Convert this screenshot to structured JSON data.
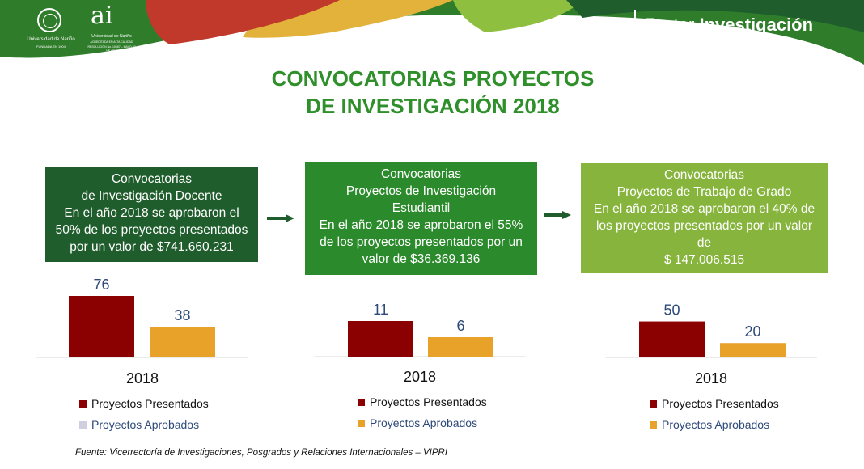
{
  "header": {
    "university_name": "Universidad de Nariño",
    "university_founded": "FUNDADA EN 1904",
    "ai_mark": "ai",
    "ai_line1": "Universidad de Nariño",
    "ai_line2": "ACREDITADA EN ALTA CALIDAD",
    "ai_line3": "RESOLUCIÓN No. 10567 – MAYO 23 DE 2017",
    "brand_light": "Factor ",
    "brand_bold": "Investigación"
  },
  "title": {
    "line1": "CONVOCATORIAS PROYECTOS",
    "line2": "DE INVESTIGACIÓN 2018"
  },
  "cards": [
    {
      "lines": [
        "Convocatorias",
        "de Investigación Docente",
        "En el año 2018 se aprobaron el",
        "50% de los proyectos presentados",
        "por un valor de  $741.660.231"
      ]
    },
    {
      "lines": [
        "Convocatorias",
        "Proyectos de Investigación",
        "Estudiantil",
        "En el año 2018 se aprobaron el 55%",
        "de los proyectos presentados por un",
        "valor de  $36.369.136"
      ]
    },
    {
      "lines": [
        "Convocatorias",
        "Proyectos de Trabajo de Grado",
        "En el año 2018 se aprobaron el 40% de",
        "los proyectos presentados por un valor",
        "de",
        "$ 147.006.515"
      ]
    }
  ],
  "colors": {
    "presentados": "#8b0000",
    "aprobados": "#e8a22a",
    "legend_aprobados_swatch_chart1": "#cfcfe0",
    "card1": "#1f5d2c",
    "card2": "#2b8a2b",
    "card3": "#86b43c",
    "title": "#2f8f2a"
  },
  "chart_data": [
    {
      "type": "bar",
      "categories": [
        "2018"
      ],
      "series": [
        {
          "name": "Proyectos Presentados",
          "values": [
            76
          ]
        },
        {
          "name": "Proyectos Aprobados",
          "values": [
            38
          ]
        }
      ],
      "ylim": [
        0,
        80
      ],
      "legend": "bottom"
    },
    {
      "type": "bar",
      "categories": [
        "2018"
      ],
      "series": [
        {
          "name": "Proyectos Presentados",
          "values": [
            11
          ]
        },
        {
          "name": "Proyectos Aprobados",
          "values": [
            6
          ]
        }
      ],
      "ylim": [
        0,
        20
      ],
      "legend": "bottom"
    },
    {
      "type": "bar",
      "categories": [
        "2018"
      ],
      "series": [
        {
          "name": "Proyectos Presentados",
          "values": [
            50
          ]
        },
        {
          "name": "Proyectos Aprobados",
          "values": [
            20
          ]
        }
      ],
      "ylim": [
        0,
        90
      ],
      "legend": "bottom"
    }
  ],
  "source": "Fuente: Vicerrectoría de Investigaciones, Posgrados y Relaciones Internacionales – VIPRI"
}
